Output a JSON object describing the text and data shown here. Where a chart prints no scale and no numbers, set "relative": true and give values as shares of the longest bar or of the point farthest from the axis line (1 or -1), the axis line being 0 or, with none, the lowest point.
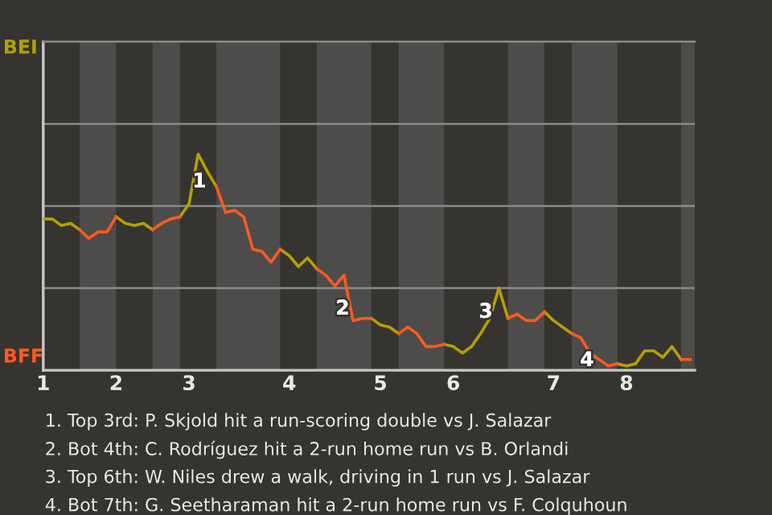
{
  "chart_data": {
    "type": "line",
    "relative": true,
    "categories": [
      "1",
      null,
      null,
      null,
      null,
      null,
      null,
      null,
      "2",
      null,
      null,
      null,
      null,
      null,
      null,
      null,
      "3",
      null,
      null,
      null,
      null,
      null,
      null,
      null,
      null,
      null,
      null,
      "4",
      null,
      null,
      null,
      null,
      null,
      null,
      null,
      null,
      null,
      "5",
      null,
      null,
      null,
      null,
      null,
      null,
      null,
      "6",
      null,
      null,
      null,
      null,
      null,
      null,
      null,
      null,
      null,
      null,
      "7",
      null,
      null,
      null,
      null,
      null,
      null,
      null,
      "8",
      null,
      null,
      null,
      null,
      null,
      null,
      null
    ],
    "series": [
      {
        "color": "#b5a000",
        "values": [
          0.7,
          0.7,
          0.67,
          0.68,
          0.65,
          null,
          null,
          null,
          0.71,
          0.68,
          0.67,
          0.68,
          0.65,
          null,
          null,
          0.71,
          0.77,
          1,
          0.92,
          0.85,
          null,
          null,
          null,
          null,
          null,
          null,
          0.56,
          0.53,
          0.48,
          0.52,
          0.47,
          null,
          null,
          null,
          null,
          null,
          0.24,
          0.21,
          0.2,
          0.17,
          null,
          null,
          null,
          null,
          0.12,
          0.11,
          0.08,
          0.11,
          0.17,
          0.24,
          0.38,
          0.24,
          null,
          null,
          null,
          0.27,
          0.23,
          0.2,
          0.17,
          null,
          null,
          null,
          null,
          0.03,
          0.02,
          0.03,
          0.09,
          0.09,
          0.06,
          0.11,
          0.05,
          null
        ]
      },
      {
        "color": "#ff5a1f",
        "values": [
          null,
          null,
          null,
          null,
          0.65,
          0.61,
          0.64,
          0.64,
          0.71,
          null,
          null,
          null,
          0.65,
          0.68,
          0.7,
          0.71,
          null,
          null,
          null,
          0.85,
          0.73,
          0.74,
          0.71,
          0.56,
          0.55,
          0.5,
          0.56,
          null,
          null,
          null,
          0.47,
          0.44,
          0.39,
          0.44,
          0.23,
          0.24,
          0.24,
          null,
          null,
          0.17,
          0.2,
          0.17,
          0.11,
          0.11,
          0.12,
          null,
          null,
          null,
          null,
          null,
          null,
          0.24,
          0.26,
          0.23,
          0.23,
          0.27,
          null,
          null,
          0.17,
          0.15,
          0.08,
          0.05,
          0.02,
          0.03,
          null,
          null,
          null,
          null,
          null,
          null,
          0.05,
          0.05
        ]
      }
    ],
    "ref_lines": [
      {
        "axis": "y",
        "value": 0.38,
        "color": "#8a8a8a"
      },
      {
        "axis": "y",
        "value": 0.76,
        "color": "#8a8a8a"
      },
      {
        "axis": "y",
        "value": 1.14,
        "color": "#8a8a8a"
      }
    ],
    "line_style": "solid",
    "marker": "none",
    "annotations": [
      "1",
      "2",
      "3",
      "4",
      "BEI",
      "BFF",
      "1. Top 3rd: P. Skjold hit a run-scoring double vs J. Salazar",
      "2. Bot 4th: C. Rodríguez hit a 2-run home run vs B. Orlandi",
      "3. Top 6th: W. Niles drew a walk, driving in 1 run vs J. Salazar",
      "4. Bot 7th: G. Seetharaman hit a 2-run home run vs F. Colquhoun"
    ]
  }
}
